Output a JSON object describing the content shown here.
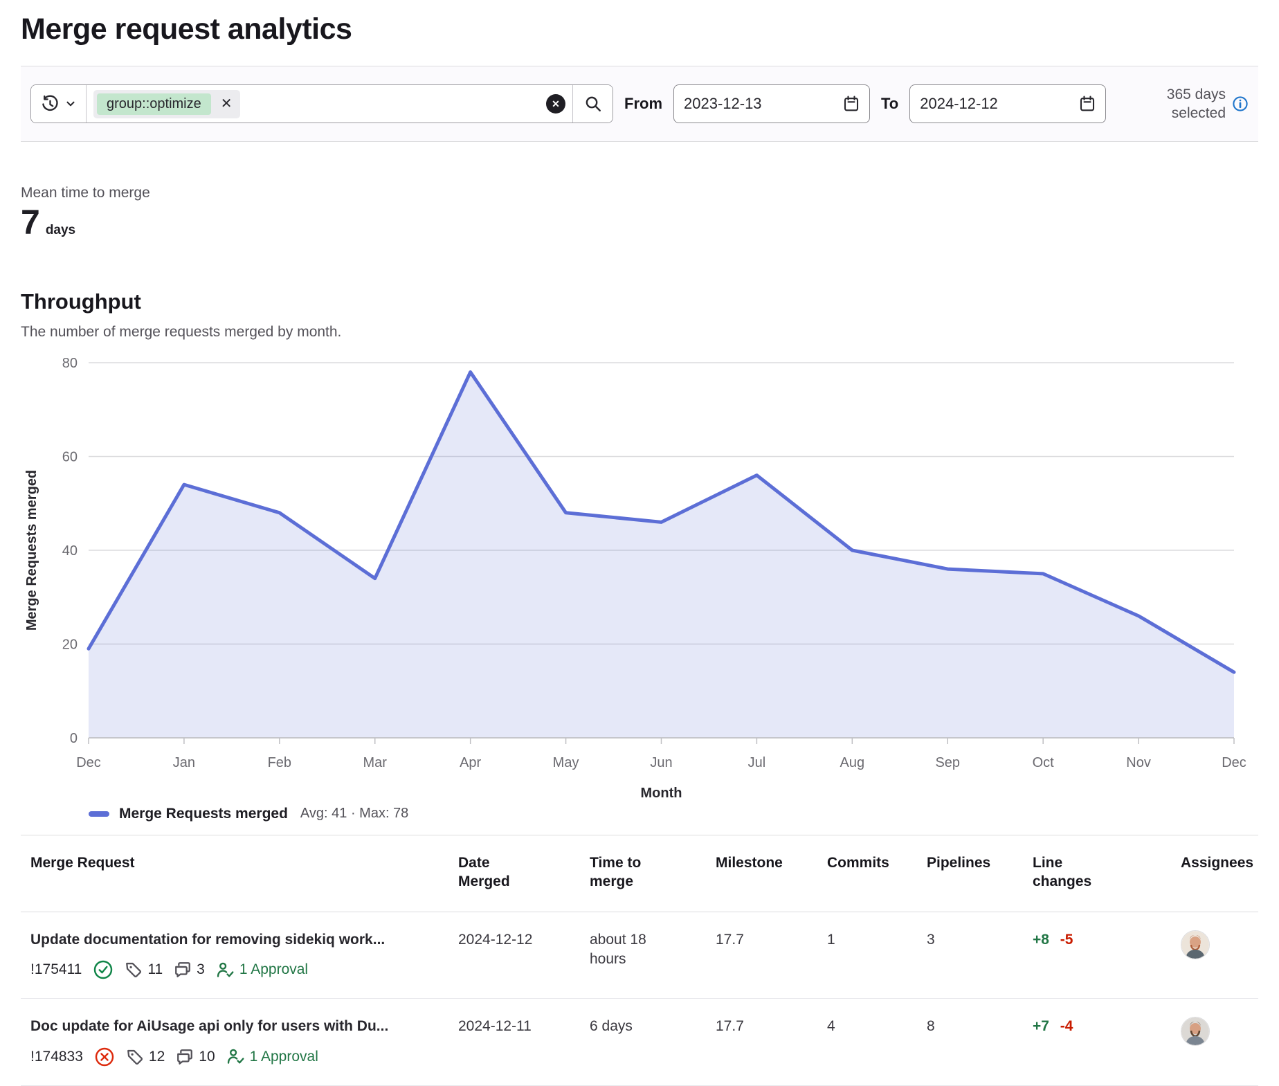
{
  "header": {
    "title": "Merge request analytics"
  },
  "filter": {
    "token": {
      "value": "group::optimize"
    },
    "from_label": "From",
    "from_value": "2023-12-13",
    "to_label": "To",
    "to_value": "2024-12-12",
    "range_selected": "365 days selected"
  },
  "metric": {
    "label": "Mean time to merge",
    "value": "7",
    "unit": "days"
  },
  "throughput": {
    "title": "Throughput",
    "subtitle": "The number of merge requests merged by month."
  },
  "chart_data": {
    "type": "area",
    "categories": [
      "Dec",
      "Jan",
      "Feb",
      "Mar",
      "Apr",
      "May",
      "Jun",
      "Jul",
      "Aug",
      "Sep",
      "Oct",
      "Nov",
      "Dec"
    ],
    "values": [
      19,
      54,
      48,
      34,
      78,
      48,
      46,
      56,
      40,
      36,
      35,
      26,
      14
    ],
    "title": "Throughput",
    "xlabel": "Month",
    "ylabel": "Merge Requests merged",
    "ylim": [
      0,
      80
    ],
    "ytick_step": 20,
    "grid": true,
    "legend": {
      "label": "Merge Requests merged",
      "stats": "Avg: 41 · Max: 78",
      "position": "bottom-left"
    },
    "line_color": "#5c6ed6",
    "fill_color": "rgba(92,110,214,0.16)"
  },
  "table": {
    "headers": [
      "Merge Request",
      "Date Merged",
      "Time to merge",
      "Milestone",
      "Commits",
      "Pipelines",
      "Line changes",
      "Assignees"
    ],
    "rows": [
      {
        "title": "Update documentation for removing sidekiq work...",
        "id": "!175411",
        "status": "merged",
        "labels": "11",
        "comments": "3",
        "approvals": "1 Approval",
        "date_merged": "2024-12-12",
        "time_to_merge": "about 18 hours",
        "milestone": "17.7",
        "commits": "1",
        "pipelines": "3",
        "additions": "+8",
        "deletions": "-5"
      },
      {
        "title": "Doc update for AiUsage api only for users with Du...",
        "id": "!174833",
        "status": "closed",
        "labels": "12",
        "comments": "10",
        "approvals": "1 Approval",
        "date_merged": "2024-12-11",
        "time_to_merge": "6 days",
        "milestone": "17.7",
        "commits": "4",
        "pipelines": "8",
        "additions": "+7",
        "deletions": "-4"
      }
    ]
  }
}
